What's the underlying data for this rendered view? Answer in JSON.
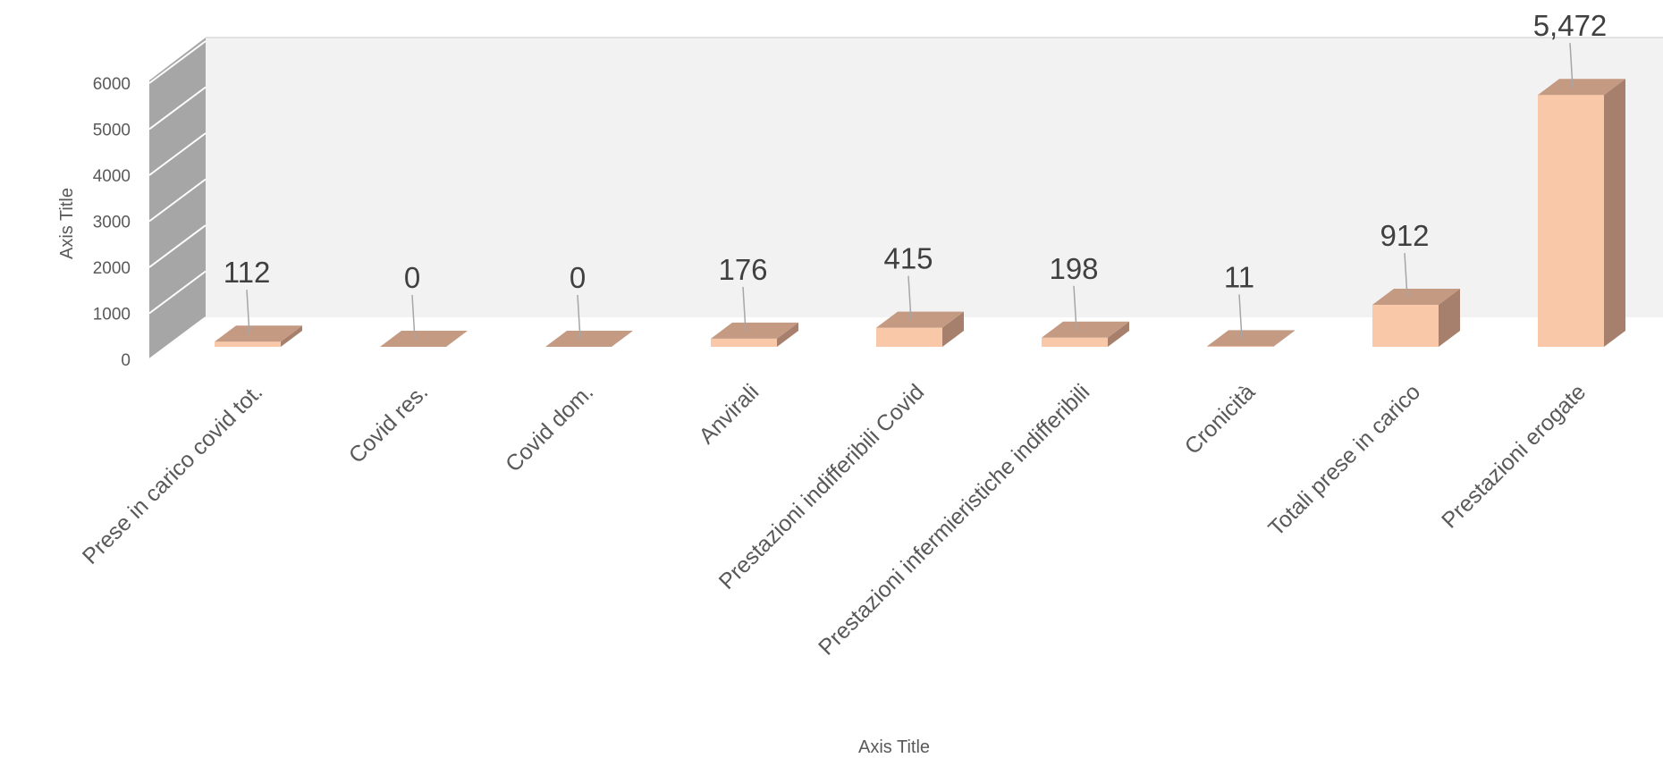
{
  "chart_data": {
    "type": "bar",
    "style": "3d-column",
    "title": "",
    "xlabel": "Axis Title",
    "ylabel": "Axis Title",
    "ylim": [
      0,
      6000
    ],
    "yticks": [
      0,
      1000,
      2000,
      3000,
      4000,
      5000,
      6000
    ],
    "categories": [
      "Prese in carico covid tot.",
      "Covid res.",
      "Covid dom.",
      "Anvirali",
      "Prestazioni indifferibili Covid",
      "Prestazioni infermieristiche indifferibili",
      "Cronicità",
      "Totali prese in carico",
      "Prestazioni erogate"
    ],
    "values": [
      112,
      0,
      0,
      176,
      415,
      198,
      11,
      912,
      5472
    ],
    "data_labels": [
      "112",
      "0",
      "0",
      "176",
      "415",
      "198",
      "11",
      "912",
      "5,472"
    ],
    "grid": false,
    "legend": "none",
    "colors": {
      "bar_front": "#F8C8A8",
      "bar_top": "#C49A82",
      "bar_side": "#A6806C",
      "wall": "#F2F2F2",
      "side_wall": "#A6A6A6",
      "floor": "#D9D9D9"
    }
  }
}
